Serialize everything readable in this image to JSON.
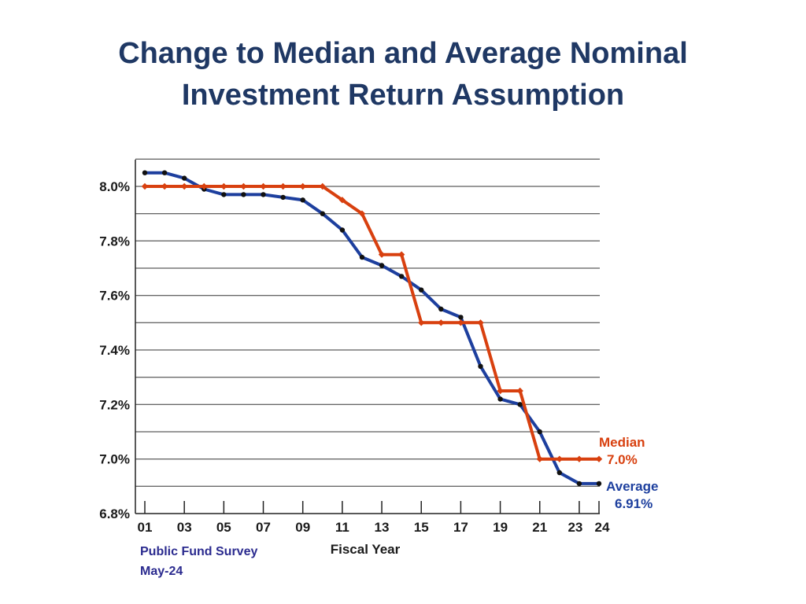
{
  "title_line1": "Change to Median and Average Nominal",
  "title_line2": "Investment Return Assumption",
  "source_line1": "Public Fund Survey",
  "source_line2": "May-24",
  "colors": {
    "median": "#d8400f",
    "average": "#1d3f9e",
    "title": "#1f3864",
    "source": "#2b2b8f"
  },
  "chart_data": {
    "type": "line",
    "xlabel": "Fiscal Year",
    "ylabel": "",
    "ylim": [
      6.8,
      8.1
    ],
    "xlim": [
      2001,
      2024
    ],
    "y_ticks": [
      "8.0%",
      "7.8%",
      "7.6%",
      "7.4%",
      "7.2%",
      "7.0%",
      "6.8%"
    ],
    "x_ticks": [
      "01",
      "03",
      "05",
      "07",
      "09",
      "11",
      "13",
      "15",
      "17",
      "19",
      "21",
      "23",
      "24"
    ],
    "x": [
      2001,
      2002,
      2003,
      2004,
      2005,
      2006,
      2007,
      2008,
      2009,
      2010,
      2011,
      2012,
      2013,
      2014,
      2015,
      2016,
      2017,
      2018,
      2019,
      2020,
      2021,
      2022,
      2023,
      2024
    ],
    "series": [
      {
        "name": "Median",
        "label_value": "7.0%",
        "values": [
          8.0,
          8.0,
          8.0,
          8.0,
          8.0,
          8.0,
          8.0,
          8.0,
          8.0,
          8.0,
          7.95,
          7.9,
          7.75,
          7.75,
          7.5,
          7.5,
          7.5,
          7.5,
          7.25,
          7.25,
          7.0,
          7.0,
          7.0,
          7.0
        ]
      },
      {
        "name": "Average",
        "label_value": "6.91%",
        "values": [
          8.05,
          8.05,
          8.03,
          7.99,
          7.97,
          7.97,
          7.97,
          7.96,
          7.95,
          7.9,
          7.84,
          7.74,
          7.71,
          7.67,
          7.62,
          7.55,
          7.52,
          7.34,
          7.22,
          7.2,
          7.1,
          6.95,
          6.91,
          6.91
        ]
      }
    ]
  }
}
